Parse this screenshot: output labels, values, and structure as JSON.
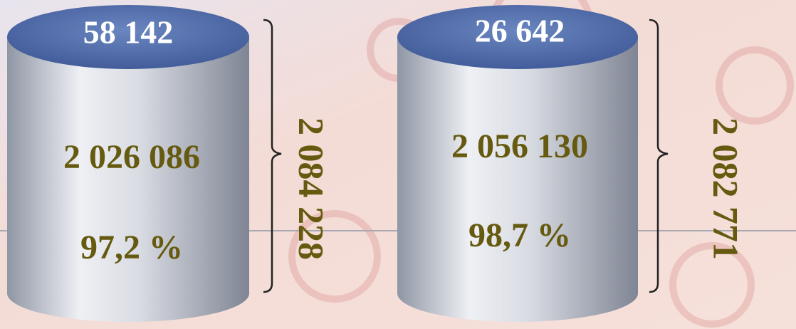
{
  "cylinders": [
    {
      "top": "58 142",
      "middle": "2 026 086",
      "percent": "97,2 %",
      "total": "2 084 228"
    },
    {
      "top": "26 642",
      "middle": "2 056 130",
      "percent": "98,7 %",
      "total": "2 082 771"
    }
  ]
}
